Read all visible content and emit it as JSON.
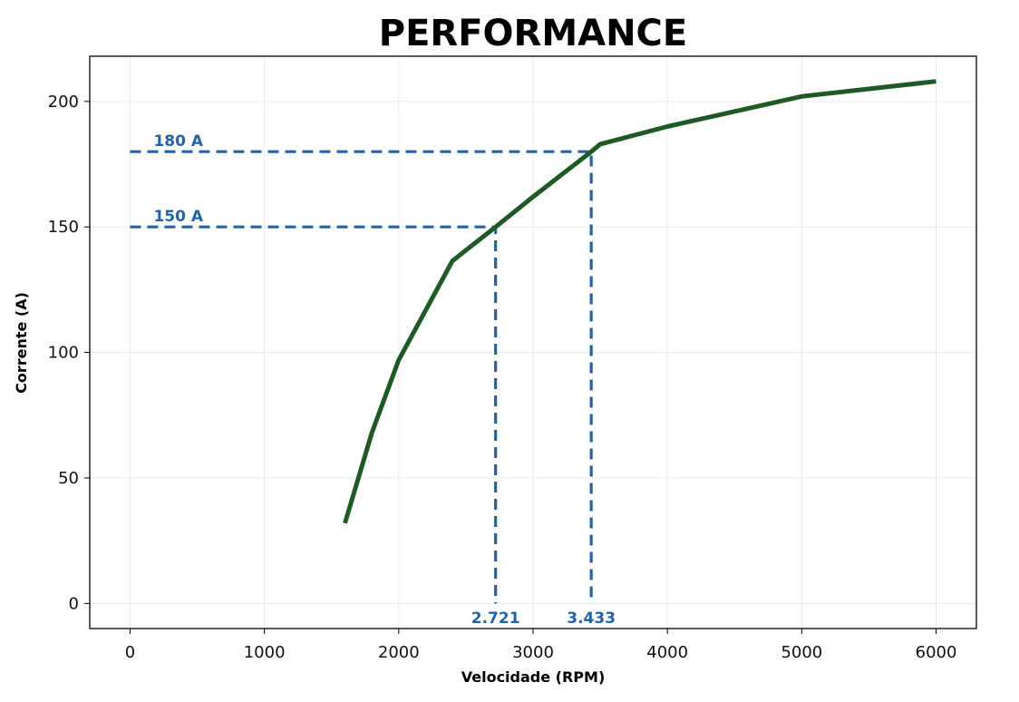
{
  "chart_data": {
    "type": "line",
    "title": "PERFORMANCE",
    "xlabel": "Velocidade (RPM)",
    "ylabel": "Corrente (A)",
    "xlim": [
      -300,
      6300
    ],
    "ylim": [
      -10,
      218
    ],
    "xticks": [
      0,
      1000,
      2000,
      3000,
      4000,
      5000,
      6000
    ],
    "yticks": [
      0,
      50,
      100,
      150,
      200
    ],
    "grid": true,
    "series": [
      {
        "color": "#1e5a23",
        "x": [
          1600,
          1800,
          2000,
          2400,
          2721,
          3000,
          3433,
          3500,
          4000,
          5000,
          6000
        ],
        "y": [
          32,
          68,
          97,
          136.5,
          150,
          162,
          180,
          183,
          190,
          202,
          208
        ]
      }
    ],
    "reference_lines": [
      {
        "y": 180,
        "x": 3433,
        "y_label": "180 A",
        "x_label": "3.433",
        "color": "#2563a8"
      },
      {
        "y": 150,
        "x": 2721,
        "y_label": "150 A",
        "x_label": "2.721",
        "color": "#2563a8"
      }
    ]
  }
}
